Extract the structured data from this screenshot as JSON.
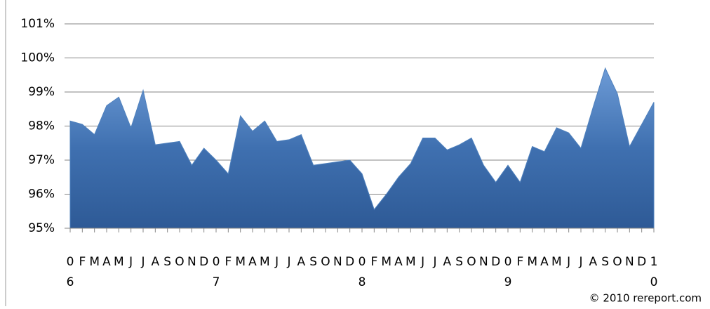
{
  "chart_data": {
    "type": "area",
    "categories": [
      "0",
      "F",
      "M",
      "A",
      "M",
      "J",
      "J",
      "A",
      "S",
      "O",
      "N",
      "D",
      "0",
      "F",
      "M",
      "A",
      "M",
      "J",
      "J",
      "A",
      "S",
      "O",
      "N",
      "D",
      "0",
      "F",
      "M",
      "A",
      "M",
      "J",
      "J",
      "A",
      "S",
      "O",
      "N",
      "D",
      "0",
      "F",
      "M",
      "A",
      "M",
      "J",
      "J",
      "A",
      "S",
      "O",
      "N",
      "D",
      "1"
    ],
    "category_sublabels": [
      "6",
      null,
      null,
      null,
      null,
      null,
      null,
      null,
      null,
      null,
      null,
      null,
      "7",
      null,
      null,
      null,
      null,
      null,
      null,
      null,
      null,
      null,
      null,
      null,
      "8",
      null,
      null,
      null,
      null,
      null,
      null,
      null,
      null,
      null,
      null,
      null,
      "9",
      null,
      null,
      null,
      null,
      null,
      null,
      null,
      null,
      null,
      null,
      null,
      "0"
    ],
    "values": [
      98.15,
      98.05,
      97.75,
      98.6,
      98.85,
      97.95,
      99.05,
      97.45,
      97.5,
      97.55,
      96.85,
      97.35,
      97.0,
      96.6,
      98.3,
      97.85,
      98.15,
      97.55,
      97.6,
      97.75,
      96.85,
      96.9,
      96.95,
      97.0,
      96.6,
      95.55,
      96.0,
      96.5,
      96.9,
      97.65,
      97.65,
      97.3,
      97.45,
      97.65,
      96.85,
      96.35,
      96.85,
      96.35,
      97.4,
      97.25,
      97.95,
      97.8,
      97.35,
      98.55,
      99.7,
      98.95,
      97.4,
      98.05,
      98.7
    ],
    "color": "#4f81bd",
    "ylim": [
      95,
      101
    ],
    "yticks": [
      {
        "value": 95,
        "label": "95%"
      },
      {
        "value": 96,
        "label": "96%"
      },
      {
        "value": 97,
        "label": "97%"
      },
      {
        "value": 98,
        "label": "98%"
      },
      {
        "value": 99,
        "label": "99%"
      },
      {
        "value": 100,
        "label": "100%"
      },
      {
        "value": 101,
        "label": "101%"
      }
    ],
    "grid": true,
    "footnote": "© 2010 rereport.com"
  }
}
